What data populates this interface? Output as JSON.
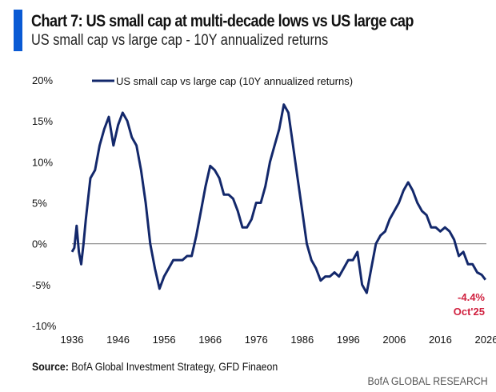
{
  "header": {
    "title": "Chart 7: US small cap at multi-decade lows vs US large cap",
    "subtitle": "US small cap vs large cap - 10Y annualized returns"
  },
  "footer": {
    "source_label": "Source:",
    "source_text": " BofA Global Investment Strategy, GFD Finaeon",
    "brand": "BofA GLOBAL RESEARCH"
  },
  "chart_data": {
    "type": "line",
    "title": "US small cap vs large cap - 10Y annualized returns",
    "xlabel": "",
    "ylabel": "",
    "xlim": [
      1936,
      2026
    ],
    "ylim": [
      -10,
      20
    ],
    "x_ticks": [
      "1936",
      "1946",
      "1956",
      "1966",
      "1976",
      "1986",
      "1996",
      "2006",
      "2016",
      "2026"
    ],
    "y_ticks": [
      "20%",
      "15%",
      "10%",
      "5%",
      "0%",
      "-5%",
      "-10%"
    ],
    "y_tick_values": [
      20,
      15,
      10,
      5,
      0,
      -5,
      -10
    ],
    "legend_placement": "top",
    "grid": false,
    "zero_line": true,
    "colors": {
      "series": "#13286b",
      "annotation": "#d0213f",
      "zero": "#888888"
    },
    "annotation": {
      "value_label": "-4.4%",
      "date_label": "Oct'25",
      "x": 2025.8,
      "y": -4.4
    },
    "series": [
      {
        "name": "US small cap vs large cap (10Y annualized returns)",
        "x": [
          1936,
          1936.5,
          1937,
          1937.5,
          1938,
          1938.5,
          1939,
          1940,
          1941,
          1942,
          1943,
          1944,
          1945,
          1946,
          1947,
          1948,
          1949,
          1950,
          1951,
          1952,
          1953,
          1954,
          1955,
          1956,
          1957,
          1958,
          1959,
          1960,
          1961,
          1962,
          1963,
          1964,
          1965,
          1966,
          1967,
          1968,
          1969,
          1970,
          1971,
          1972,
          1973,
          1974,
          1975,
          1976,
          1977,
          1978,
          1979,
          1980,
          1981,
          1982,
          1983,
          1984,
          1985,
          1986,
          1987,
          1988,
          1989,
          1990,
          1991,
          1992,
          1993,
          1994,
          1995,
          1996,
          1997,
          1998,
          1999,
          2000,
          2001,
          2002,
          2003,
          2004,
          2005,
          2006,
          2007,
          2008,
          2009,
          2010,
          2011,
          2012,
          2013,
          2014,
          2015,
          2016,
          2017,
          2018,
          2019,
          2020,
          2021,
          2022,
          2023,
          2024,
          2025,
          2025.8
        ],
        "values": [
          -1,
          -0.5,
          2.2,
          -1,
          -2.5,
          0,
          3,
          8,
          9,
          12,
          14,
          15.5,
          12,
          14.5,
          16,
          15,
          13,
          12,
          9,
          5,
          0,
          -3,
          -5.5,
          -4,
          -3,
          -2,
          -2,
          -2,
          -1.5,
          -1.5,
          1,
          4,
          7,
          9.5,
          9,
          8,
          6,
          6,
          5.5,
          4,
          2,
          2,
          3,
          5,
          5,
          7,
          10,
          12,
          14,
          17,
          16,
          12,
          8,
          4,
          0,
          -2,
          -3,
          -4.5,
          -4,
          -4,
          -3.5,
          -4,
          -3,
          -2,
          -2,
          -1,
          -5,
          -6,
          -3,
          0,
          1,
          1.5,
          3,
          4,
          5,
          6.5,
          7.5,
          6.5,
          5,
          4,
          3.5,
          2,
          2,
          1.5,
          2,
          1.5,
          0.5,
          -1.5,
          -1,
          -2.5,
          -2.5,
          -3.5,
          -3.8,
          -4.4
        ]
      }
    ]
  }
}
